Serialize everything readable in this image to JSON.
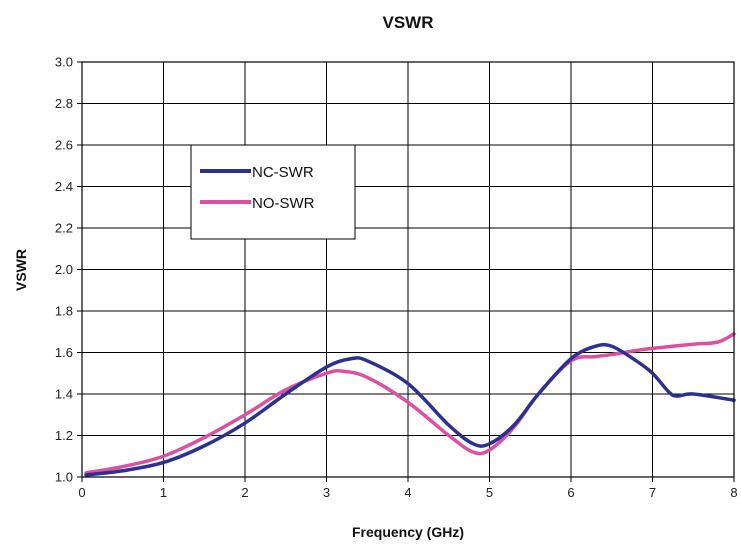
{
  "chart_data": {
    "type": "line",
    "title": "VSWR",
    "xlabel": "Frequency (GHz)",
    "ylabel": "VSWR",
    "xlim": [
      0,
      8
    ],
    "ylim": [
      1.0,
      3.0
    ],
    "x_ticks": [
      "0",
      "1",
      "2",
      "3",
      "4",
      "5",
      "6",
      "7",
      "8"
    ],
    "y_ticks": [
      "1.0",
      "1.2",
      "1.4",
      "1.6",
      "1.8",
      "2.0",
      "2.2",
      "2.4",
      "2.6",
      "2.8",
      "3.0"
    ],
    "grid": true,
    "legend_position": "upper-left",
    "series": [
      {
        "name": "NC-SWR",
        "color": "#2b3190",
        "points": [
          [
            0.05,
            1.01
          ],
          [
            0.5,
            1.03
          ],
          [
            1.0,
            1.07
          ],
          [
            1.5,
            1.15
          ],
          [
            2.0,
            1.26
          ],
          [
            2.5,
            1.4
          ],
          [
            3.0,
            1.53
          ],
          [
            3.3,
            1.57
          ],
          [
            3.5,
            1.56
          ],
          [
            4.0,
            1.45
          ],
          [
            4.5,
            1.25
          ],
          [
            4.8,
            1.16
          ],
          [
            5.0,
            1.16
          ],
          [
            5.3,
            1.25
          ],
          [
            5.6,
            1.4
          ],
          [
            6.0,
            1.57
          ],
          [
            6.3,
            1.63
          ],
          [
            6.5,
            1.63
          ],
          [
            6.8,
            1.56
          ],
          [
            7.0,
            1.5
          ],
          [
            7.2,
            1.41
          ],
          [
            7.3,
            1.39
          ],
          [
            7.5,
            1.4
          ],
          [
            8.0,
            1.37
          ]
        ]
      },
      {
        "name": "NO-SWR",
        "color": "#de4fa1",
        "points": [
          [
            0.05,
            1.02
          ],
          [
            0.5,
            1.05
          ],
          [
            1.0,
            1.1
          ],
          [
            1.5,
            1.19
          ],
          [
            2.0,
            1.3
          ],
          [
            2.5,
            1.42
          ],
          [
            3.0,
            1.5
          ],
          [
            3.2,
            1.51
          ],
          [
            3.5,
            1.48
          ],
          [
            4.0,
            1.36
          ],
          [
            4.5,
            1.2
          ],
          [
            4.8,
            1.12
          ],
          [
            5.0,
            1.13
          ],
          [
            5.3,
            1.24
          ],
          [
            5.6,
            1.4
          ],
          [
            6.0,
            1.56
          ],
          [
            6.3,
            1.58
          ],
          [
            6.5,
            1.59
          ],
          [
            6.8,
            1.61
          ],
          [
            7.0,
            1.62
          ],
          [
            7.5,
            1.64
          ],
          [
            7.8,
            1.65
          ],
          [
            8.0,
            1.69
          ]
        ]
      }
    ]
  }
}
